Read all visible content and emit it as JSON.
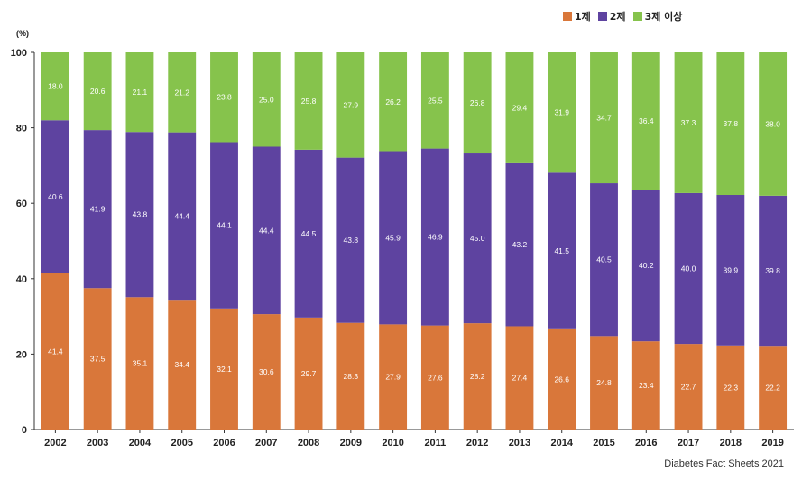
{
  "chart_data": {
    "type": "bar",
    "stacked": true,
    "unit_label": "(%)",
    "source": "Diabetes Fact Sheets 2021",
    "categories": [
      "2002",
      "2003",
      "2004",
      "2005",
      "2006",
      "2007",
      "2008",
      "2009",
      "2010",
      "2011",
      "2012",
      "2013",
      "2014",
      "2015",
      "2016",
      "2017",
      "2018",
      "2019"
    ],
    "ylim": [
      0,
      100
    ],
    "yticks": [
      0,
      20,
      40,
      60,
      80,
      100
    ],
    "legend_position": "top-right",
    "grid": false,
    "series": [
      {
        "name": "1제",
        "color": "#d9773a",
        "values": [
          41.4,
          37.5,
          35.1,
          34.4,
          32.1,
          30.6,
          29.7,
          28.3,
          27.9,
          27.6,
          28.2,
          27.4,
          26.6,
          24.8,
          23.4,
          22.7,
          22.3,
          22.2
        ]
      },
      {
        "name": "2제",
        "color": "#5e43a0",
        "values": [
          40.6,
          41.9,
          43.8,
          44.4,
          44.1,
          44.4,
          44.5,
          43.8,
          45.9,
          46.9,
          45.0,
          43.2,
          41.5,
          40.5,
          40.2,
          40.0,
          39.9,
          39.8
        ]
      },
      {
        "name": "3제 이상",
        "color": "#86c34c",
        "values": [
          18.0,
          20.6,
          21.1,
          21.2,
          23.8,
          25.0,
          25.8,
          27.9,
          26.2,
          25.5,
          26.8,
          29.4,
          31.9,
          34.7,
          36.4,
          37.3,
          37.8,
          38.0
        ]
      }
    ]
  }
}
